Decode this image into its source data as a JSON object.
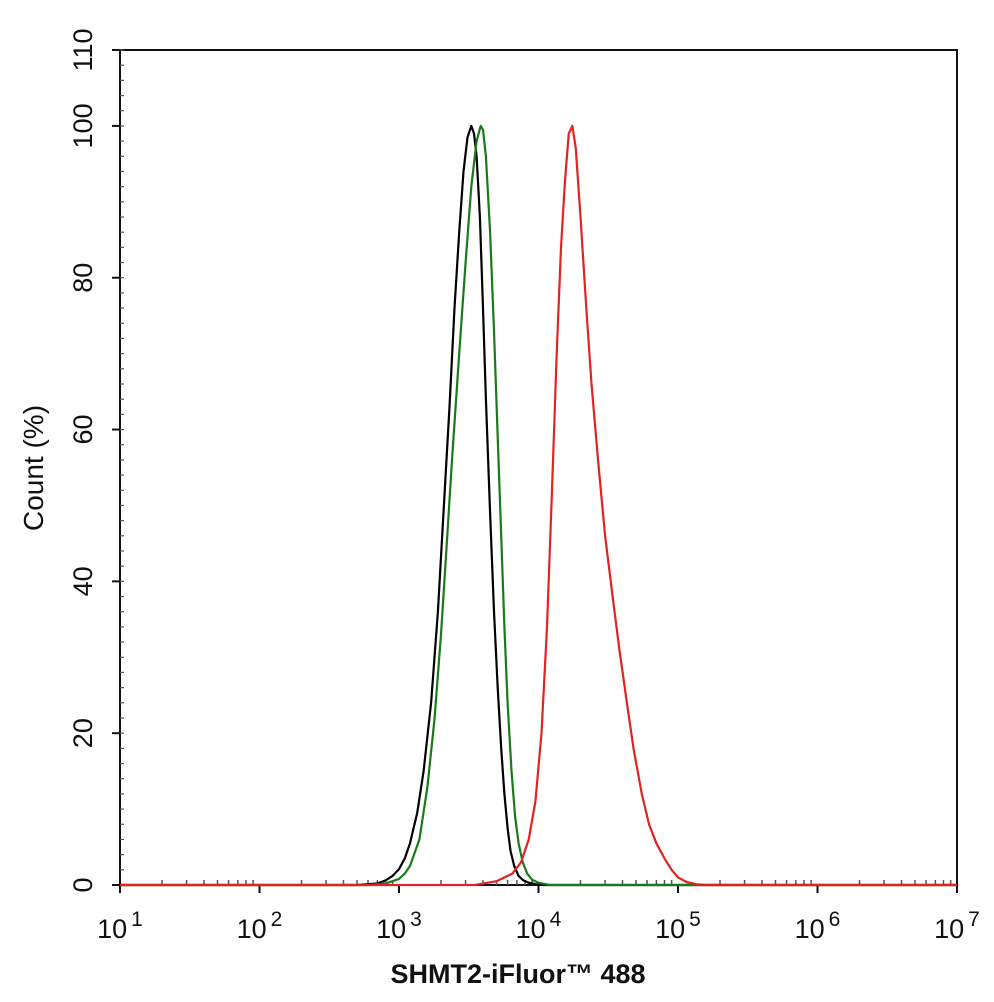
{
  "chart_data": {
    "type": "line",
    "xlabel": "SHMT2-iFluor™ 488",
    "ylabel": "Count  (%)",
    "x_scale": "log",
    "xlim": [
      10,
      10000000
    ],
    "ylim": [
      0,
      110
    ],
    "x_ticks": [
      {
        "value": 10,
        "base": "10",
        "exp": "1"
      },
      {
        "value": 100,
        "base": "10",
        "exp": "2"
      },
      {
        "value": 1000,
        "base": "10",
        "exp": "3"
      },
      {
        "value": 10000,
        "base": "10",
        "exp": "4"
      },
      {
        "value": 100000,
        "base": "10",
        "exp": "5"
      },
      {
        "value": 1000000,
        "base": "10",
        "exp": "6"
      },
      {
        "value": 10000000,
        "base": "10",
        "exp": "7"
      }
    ],
    "y_ticks": [
      "0",
      "20",
      "40",
      "60",
      "80",
      "100",
      "110"
    ],
    "series": [
      {
        "color": "#000000",
        "x": [
          500,
          700,
          800,
          900,
          1000,
          1100,
          1200,
          1350,
          1500,
          1700,
          1900,
          2100,
          2300,
          2500,
          2700,
          2900,
          3100,
          3300,
          3450,
          3600,
          3800,
          4000,
          4200,
          4500,
          4800,
          5100,
          5400,
          5700,
          6000,
          6300,
          6700,
          7200,
          7800,
          8500,
          9500,
          11000,
          13000
        ],
        "y": [
          0,
          0.2,
          0.6,
          1.2,
          2.1,
          3.5,
          5.5,
          9.5,
          15,
          24,
          36,
          50,
          63,
          76,
          86,
          94,
          98.5,
          100,
          99,
          96,
          88,
          76,
          64,
          49,
          36,
          26,
          18,
          12,
          7.5,
          4.5,
          2.5,
          1.2,
          0.6,
          0.3,
          0.1,
          0,
          0
        ]
      },
      {
        "color": "#1a7a1a",
        "x": [
          600,
          800,
          1000,
          1100,
          1200,
          1400,
          1600,
          1800,
          2000,
          2200,
          2400,
          2700,
          3000,
          3300,
          3600,
          3850,
          4000,
          4200,
          4500,
          4800,
          5100,
          5400,
          5700,
          6000,
          6400,
          6800,
          7200,
          7700,
          8300,
          9000,
          10000,
          12000,
          14000
        ],
        "y": [
          0,
          0.2,
          0.8,
          1.5,
          2.5,
          6,
          13,
          22,
          33,
          45,
          56,
          70,
          82,
          92,
          98,
          100,
          99.5,
          96,
          86,
          73,
          59,
          46,
          34,
          24,
          15,
          9,
          5.5,
          3,
          1.5,
          0.7,
          0.3,
          0,
          0
        ]
      },
      {
        "color": "#e32222",
        "x": [
          3500,
          5000,
          6500,
          7500,
          8500,
          9500,
          10500,
          11500,
          12500,
          13500,
          14500,
          15500,
          16500,
          17500,
          18500,
          20000,
          22000,
          24000,
          27000,
          30000,
          34000,
          38000,
          43000,
          48000,
          55000,
          62000,
          70000,
          80000,
          90000,
          100000,
          115000,
          135000,
          160000
        ],
        "y": [
          0,
          0.5,
          1.5,
          3,
          6,
          11,
          20,
          34,
          52,
          70,
          84,
          93,
          99,
          100,
          97,
          88,
          76,
          66,
          55,
          46,
          38,
          31,
          24,
          18,
          12,
          8,
          5.5,
          3.5,
          2,
          1,
          0.4,
          0.1,
          0
        ]
      }
    ]
  }
}
